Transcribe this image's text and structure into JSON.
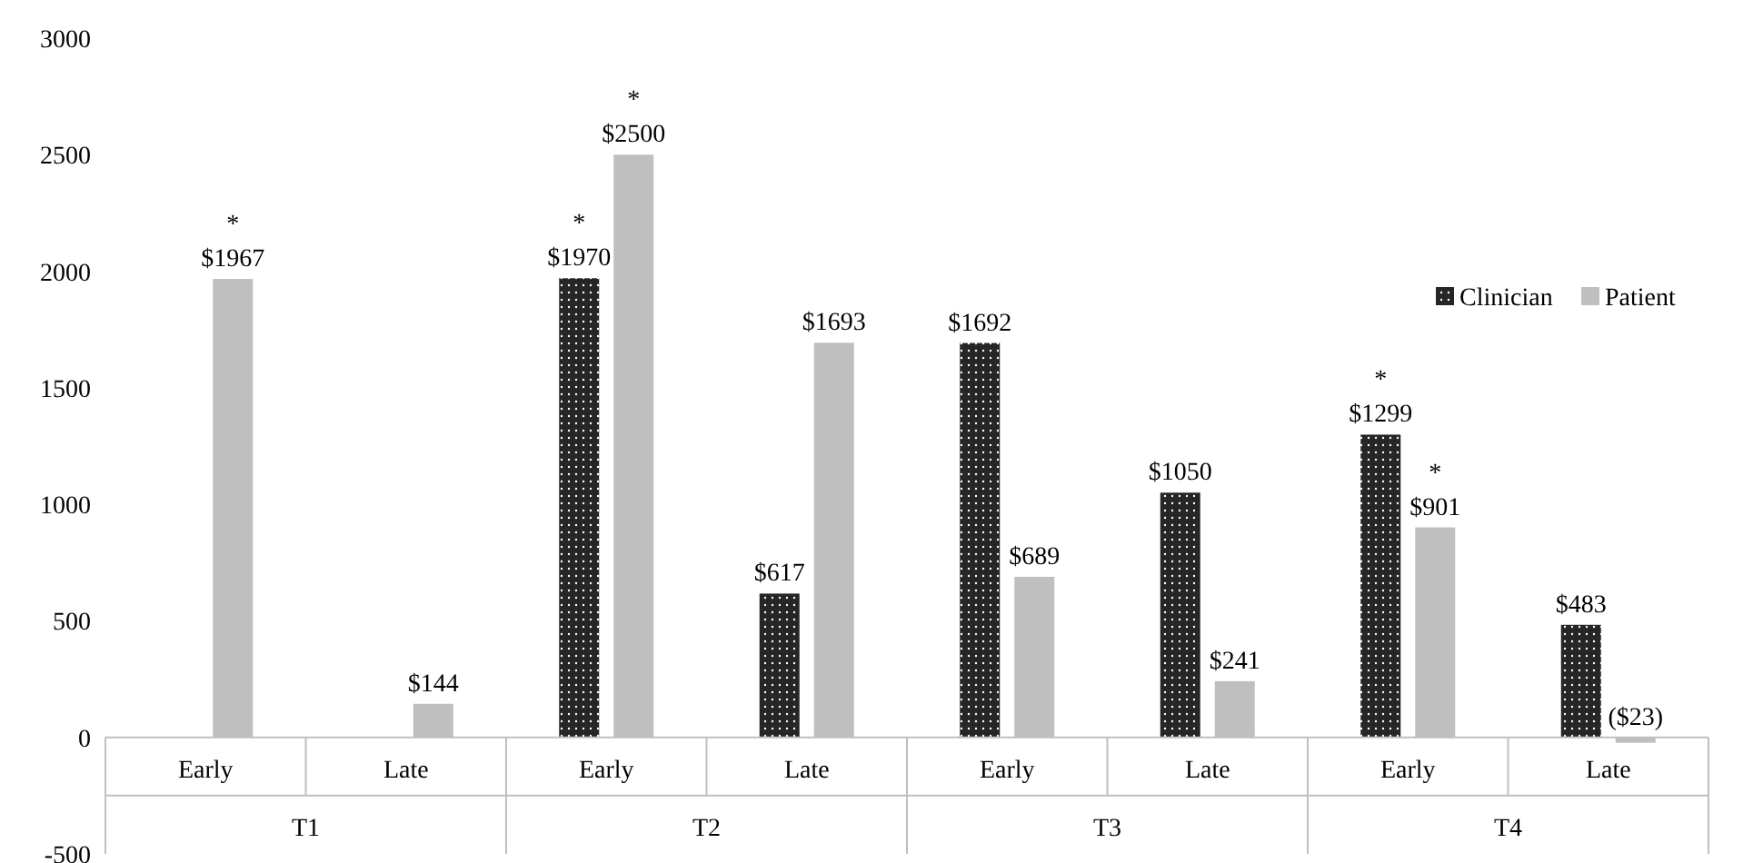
{
  "chart_data": {
    "type": "bar",
    "categories": [
      "Early",
      "Late",
      "Early",
      "Late",
      "Early",
      "Late",
      "Early",
      "Late"
    ],
    "series": [
      {
        "name": "Clinician",
        "color": "#262626",
        "values": [
          null,
          null,
          1970,
          617,
          1692,
          1050,
          1299,
          483
        ],
        "value_labels": [
          null,
          null,
          "$1970",
          "$617",
          "$1692",
          "$1050",
          "$1299",
          "$483"
        ]
      },
      {
        "name": "Patient",
        "color": "#bfbfbf",
        "values": [
          1967,
          144,
          2500,
          1693,
          689,
          241,
          901,
          -23
        ],
        "value_labels": [
          "$1967",
          "$144",
          "$2500",
          "$1693",
          "$689",
          "$241",
          "$901",
          "($23)"
        ]
      }
    ],
    "ylim": [
      -500,
      3000
    ],
    "yticks": [
      -500,
      0,
      500,
      1000,
      1500,
      2000,
      2500,
      3000
    ],
    "legend": "top right",
    "annotations": [
      "T1",
      "T2",
      "T3",
      "T4",
      "*",
      "*",
      "*",
      "*",
      "*"
    ]
  }
}
